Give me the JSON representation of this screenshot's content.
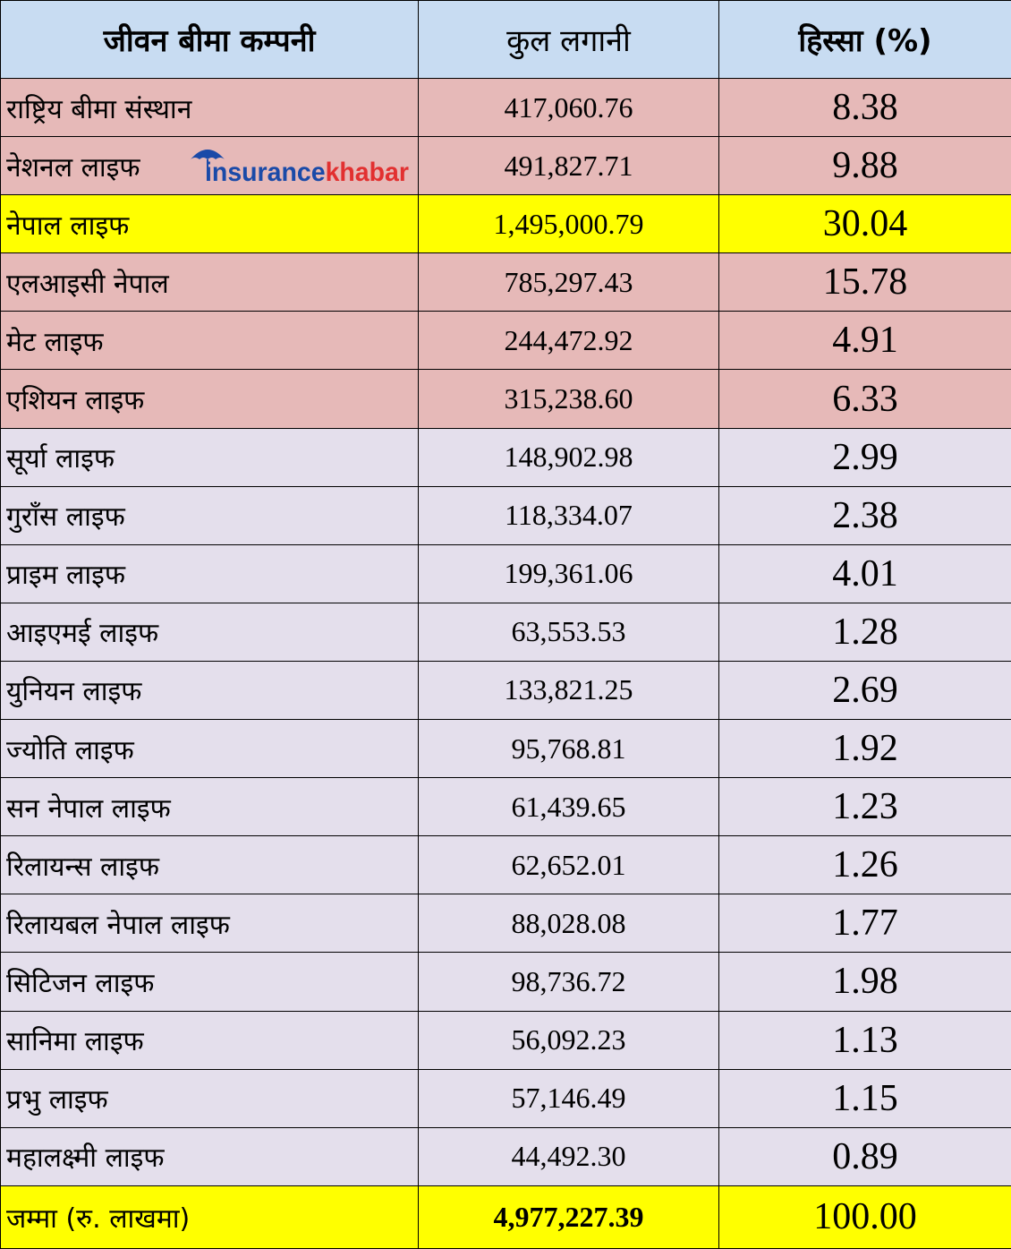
{
  "colors": {
    "header_bg": "#c8dcf2",
    "top_row_bg": "#e6b9b8",
    "highlight_bg": "#ffff00",
    "other_row_bg": "#e4dfec",
    "logo_blue": "#1a4aa8",
    "logo_red": "#e23030"
  },
  "logo": {
    "text_part1": "insurance",
    "text_part2": "khabar",
    "icon": "umbrella-icon"
  },
  "chart_data": {
    "type": "table",
    "columns": [
      "जीवन बीमा कम्पनी",
      "कुल लगानी",
      "हिस्सा (%)"
    ],
    "rows": [
      {
        "company": "राष्ट्रिय बीमा संस्थान",
        "investment": "417,060.76",
        "share": "8.38",
        "style": "top"
      },
      {
        "company": "नेशनल लाइफ",
        "investment": "491,827.71",
        "share": "9.88",
        "style": "top"
      },
      {
        "company": "नेपाल लाइफ",
        "investment": "1,495,000.79",
        "share": "30.04",
        "style": "highlight"
      },
      {
        "company": "एलआइसी नेपाल",
        "investment": "785,297.43",
        "share": "15.78",
        "style": "top"
      },
      {
        "company": "मेट लाइफ",
        "investment": "244,472.92",
        "share": "4.91",
        "style": "top"
      },
      {
        "company": "एशियन लाइफ",
        "investment": "315,238.60",
        "share": "6.33",
        "style": "top"
      },
      {
        "company": "सूर्या लाइफ",
        "investment": "148,902.98",
        "share": "2.99",
        "style": "other"
      },
      {
        "company": "गुराँस लाइफ",
        "investment": "118,334.07",
        "share": "2.38",
        "style": "other"
      },
      {
        "company": "प्राइम लाइफ",
        "investment": "199,361.06",
        "share": "4.01",
        "style": "other"
      },
      {
        "company": "आइएमई लाइफ",
        "investment": "63,553.53",
        "share": "1.28",
        "style": "other"
      },
      {
        "company": "युनियन लाइफ",
        "investment": "133,821.25",
        "share": "2.69",
        "style": "other"
      },
      {
        "company": "ज्योति लाइफ",
        "investment": "95,768.81",
        "share": "1.92",
        "style": "other"
      },
      {
        "company": "सन नेपाल लाइफ",
        "investment": "61,439.65",
        "share": "1.23",
        "style": "other"
      },
      {
        "company": "रिलायन्स लाइफ",
        "investment": "62,652.01",
        "share": "1.26",
        "style": "other"
      },
      {
        "company": "रिलायबल नेपाल लाइफ",
        "investment": "88,028.08",
        "share": "1.77",
        "style": "other"
      },
      {
        "company": "सिटिजन  लाइफ",
        "investment": "98,736.72",
        "share": "1.98",
        "style": "other"
      },
      {
        "company": "सानिमा लाइफ",
        "investment": "56,092.23",
        "share": "1.13",
        "style": "other"
      },
      {
        "company": "प्रभु लाइफ",
        "investment": "57,146.49",
        "share": "1.15",
        "style": "other"
      },
      {
        "company": "महालक्ष्मी लाइफ",
        "investment": "44,492.30",
        "share": "0.89",
        "style": "other"
      }
    ],
    "total": {
      "company": "जम्मा (रु. लाखमा)",
      "investment": "4,977,227.39",
      "share": "100.00"
    }
  }
}
